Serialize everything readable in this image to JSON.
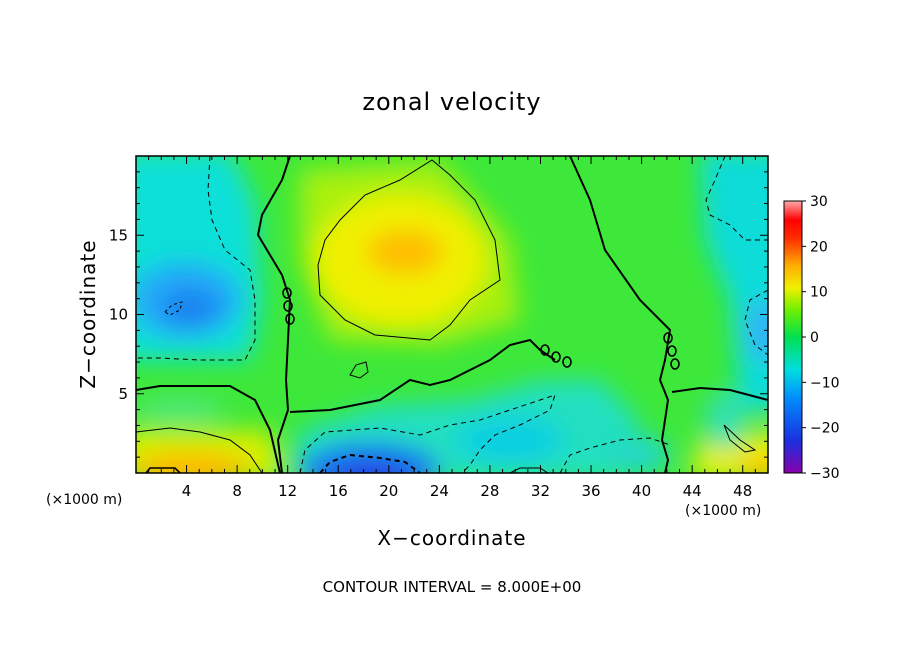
{
  "chart_data": {
    "type": "heatmap",
    "title": "zonal velocity",
    "xlabel": "X−coordinate",
    "ylabel": "Z−coordinate",
    "x_unit_left": "(×1000 m)",
    "x_unit_right": "(×1000 m)",
    "xlim": [
      0,
      50
    ],
    "ylim": [
      0,
      20
    ],
    "x_ticks": [
      4,
      8,
      12,
      16,
      20,
      24,
      28,
      32,
      36,
      40,
      44,
      48
    ],
    "y_ticks": [
      5,
      10,
      15
    ],
    "colorbar": {
      "range": [
        -30,
        30
      ],
      "ticks": [
        30,
        20,
        10,
        0,
        -10,
        -20,
        -30
      ],
      "colors": [
        "#8800aa",
        "#2040e0",
        "#00aaff",
        "#00e8e8",
        "#00e060",
        "#44ee00",
        "#ccff00",
        "#ffee00",
        "#ffaa00",
        "#ff4400",
        "#ff0000",
        "#ff9999"
      ]
    },
    "contour_note": "CONTOUR INTERVAL = 8.000E+00",
    "features": [
      {
        "x": 3,
        "z": 10.5,
        "value": -12
      },
      {
        "x": 21,
        "z": 14,
        "value": 14
      },
      {
        "x": 20,
        "z": 0.5,
        "value": -22
      },
      {
        "x": 3,
        "z": 0.5,
        "value": 12
      },
      {
        "x": 48,
        "z": 0.5,
        "value": 12
      },
      {
        "x": 48,
        "z": 15,
        "value": -8
      },
      {
        "x": 48,
        "z": 10,
        "value": -8
      }
    ]
  }
}
